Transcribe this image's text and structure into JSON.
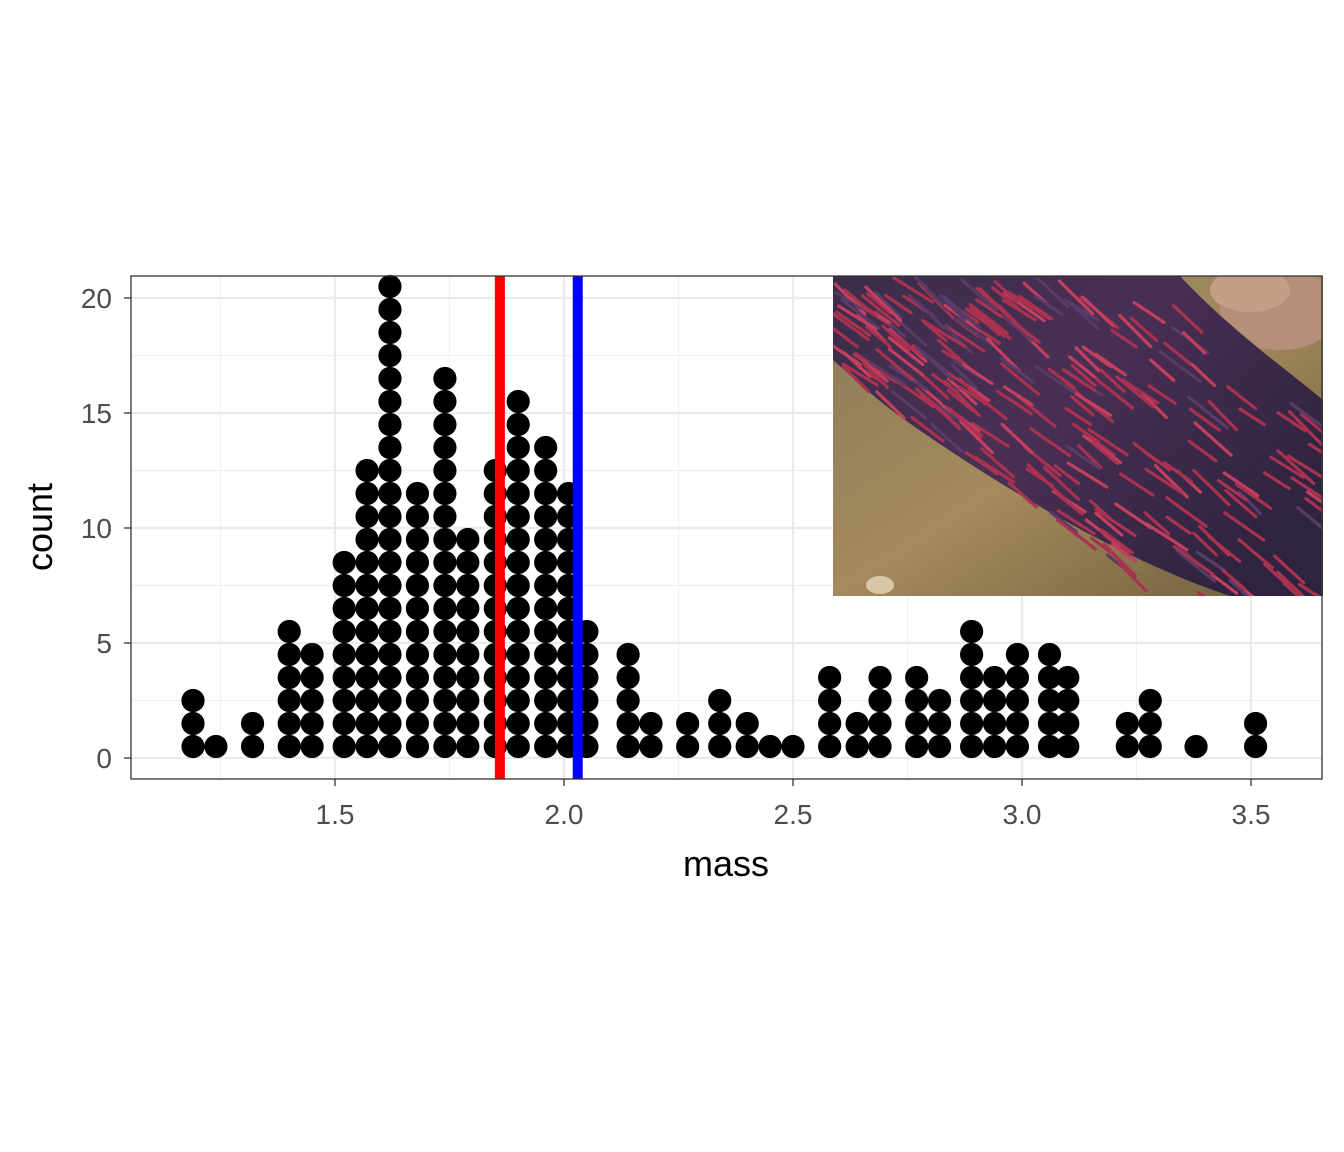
{
  "chart_data": {
    "type": "dotplot",
    "xlabel": "mass",
    "ylabel": "count",
    "xlim": [
      1.1,
      3.65
    ],
    "ylim": [
      -0.9,
      21
    ],
    "x_ticks": [
      1.5,
      2.0,
      2.5,
      3.0,
      3.5
    ],
    "x_tick_labels": [
      "1.5",
      "2.0",
      "2.5",
      "3.0",
      "3.5"
    ],
    "y_ticks": [
      0,
      5,
      10,
      15,
      20
    ],
    "y_tick_labels": [
      "0",
      "5",
      "10",
      "15",
      "20"
    ],
    "grid": true,
    "theme": "bw",
    "dot_color": "#000000",
    "stacks": [
      {
        "x": 1.19,
        "count": 3
      },
      {
        "x": 1.24,
        "count": 1
      },
      {
        "x": 1.32,
        "count": 2
      },
      {
        "x": 1.4,
        "count": 6
      },
      {
        "x": 1.45,
        "count": 5
      },
      {
        "x": 1.52,
        "count": 9
      },
      {
        "x": 1.57,
        "count": 13
      },
      {
        "x": 1.62,
        "count": 21
      },
      {
        "x": 1.68,
        "count": 12
      },
      {
        "x": 1.74,
        "count": 17
      },
      {
        "x": 1.79,
        "count": 10
      },
      {
        "x": 1.85,
        "count": 13
      },
      {
        "x": 1.9,
        "count": 16
      },
      {
        "x": 1.96,
        "count": 14
      },
      {
        "x": 2.01,
        "count": 12
      },
      {
        "x": 2.05,
        "count": 6
      },
      {
        "x": 2.14,
        "count": 5
      },
      {
        "x": 2.19,
        "count": 2
      },
      {
        "x": 2.27,
        "count": 2
      },
      {
        "x": 2.34,
        "count": 3
      },
      {
        "x": 2.4,
        "count": 2
      },
      {
        "x": 2.45,
        "count": 1
      },
      {
        "x": 2.5,
        "count": 1
      },
      {
        "x": 2.58,
        "count": 4
      },
      {
        "x": 2.64,
        "count": 2
      },
      {
        "x": 2.69,
        "count": 4
      },
      {
        "x": 2.77,
        "count": 4
      },
      {
        "x": 2.82,
        "count": 3
      },
      {
        "x": 2.89,
        "count": 6
      },
      {
        "x": 2.94,
        "count": 4
      },
      {
        "x": 2.99,
        "count": 5
      },
      {
        "x": 3.06,
        "count": 5
      },
      {
        "x": 3.1,
        "count": 4
      },
      {
        "x": 3.23,
        "count": 2
      },
      {
        "x": 3.28,
        "count": 3
      },
      {
        "x": 3.38,
        "count": 1
      },
      {
        "x": 3.51,
        "count": 2
      }
    ],
    "vlines": [
      {
        "x": 1.86,
        "color": "#ff0000"
      },
      {
        "x": 2.03,
        "color": "#0000ff"
      }
    ],
    "inset_image": {
      "subject": "school of red sockeye salmon in a shallow rocky stream"
    }
  }
}
